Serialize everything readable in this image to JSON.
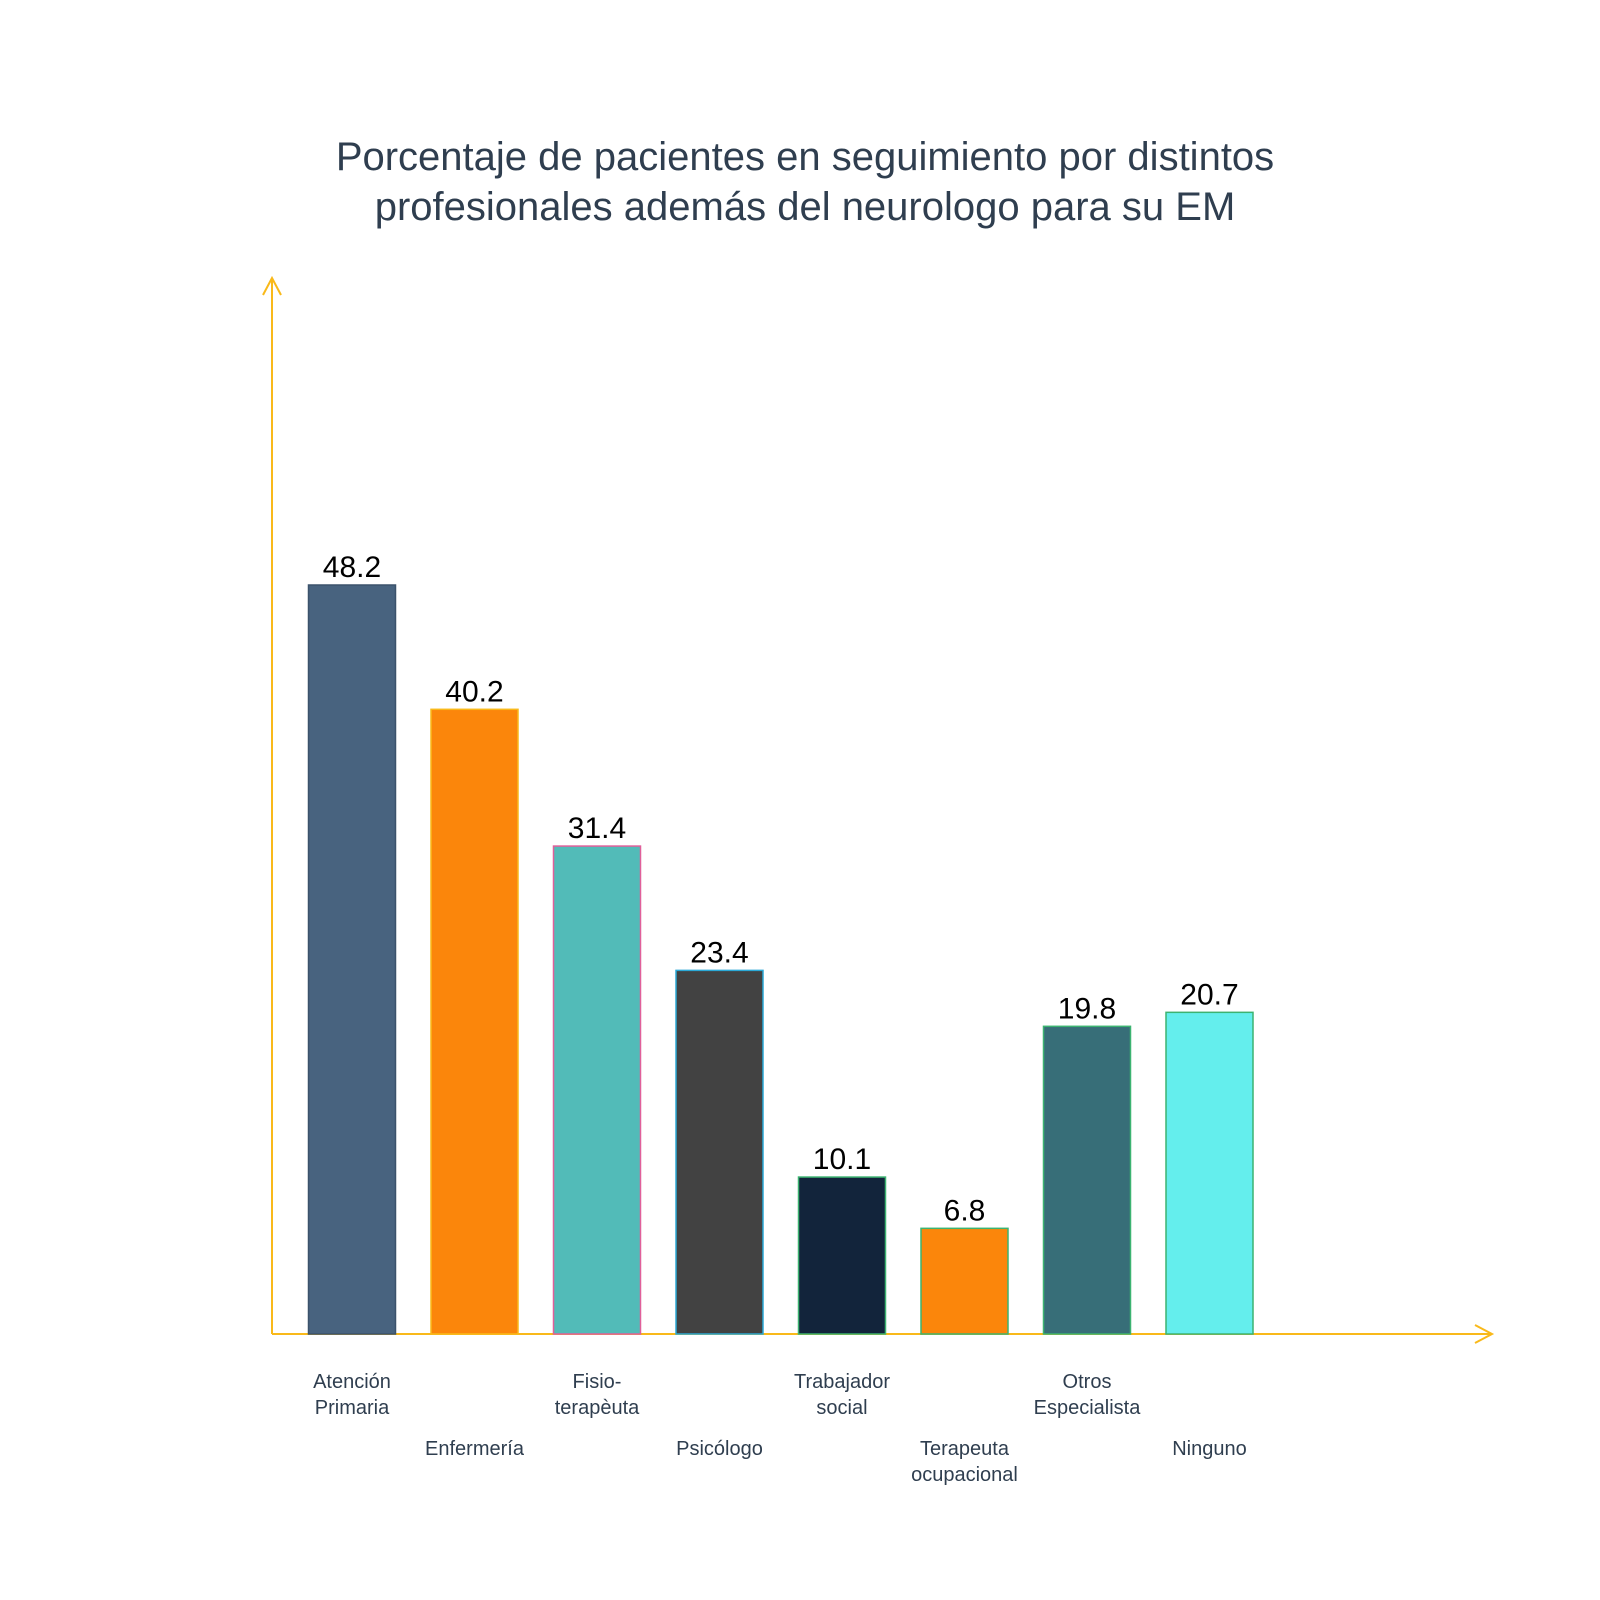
{
  "chart_data": {
    "type": "bar",
    "title_lines": [
      "Porcentaje de pacientes en seguimiento por distintos",
      "profesionales además del neurologo para su EM"
    ],
    "xlabel": "",
    "ylabel": "",
    "ylim": [
      0,
      100
    ],
    "grid": false,
    "legend": "none",
    "axis_color": "#f9b91a",
    "categories": [
      {
        "lines": [
          "Atención",
          "Primaria"
        ]
      },
      {
        "lines": [
          "Enfermería"
        ]
      },
      {
        "lines": [
          "Fisio-",
          "terapèuta"
        ]
      },
      {
        "lines": [
          "Psicólogo"
        ]
      },
      {
        "lines": [
          "Trabajador",
          "social"
        ]
      },
      {
        "lines": [
          "Terapeuta",
          "ocupacional"
        ]
      },
      {
        "lines": [
          "Otros",
          "Especialista"
        ]
      },
      {
        "lines": [
          "Ninguno"
        ]
      }
    ],
    "values": [
      48.2,
      40.2,
      31.4,
      23.4,
      10.1,
      6.8,
      19.8,
      20.7
    ],
    "value_labels": [
      "48.2",
      "40.2",
      "31.4",
      "23.4",
      "10.1",
      "6.8",
      "19.8",
      "20.7"
    ],
    "colors": [
      "#48637f",
      "#fb860b",
      "#52bbb8",
      "#424242",
      "#12243b",
      "#fb860b",
      "#376e78",
      "#64eeed"
    ],
    "edge_colors": [
      "#3b526b",
      "#f9b91a",
      "#e0609a",
      "#2ba9d6",
      "#3cb371",
      "#3cb371",
      "#3cb371",
      "#3cb371"
    ]
  }
}
